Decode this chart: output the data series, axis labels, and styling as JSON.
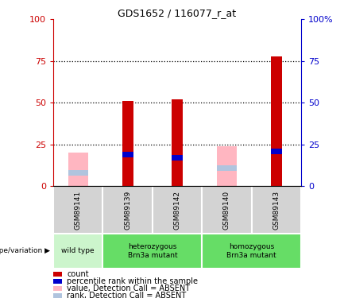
{
  "title": "GDS1652 / 116077_r_at",
  "samples": [
    "GSM89141",
    "GSM89139",
    "GSM89142",
    "GSM89140",
    "GSM89143"
  ],
  "ylim": [
    0,
    100
  ],
  "yticks": [
    0,
    25,
    50,
    75,
    100
  ],
  "ytick_labels_left": [
    "0",
    "25",
    "50",
    "75",
    "100"
  ],
  "ytick_labels_right": [
    "0",
    "25",
    "50",
    "75",
    "100%"
  ],
  "dotted_lines": [
    25,
    50,
    75
  ],
  "red_bars": [
    0,
    51,
    52,
    0,
    78
  ],
  "pink_bars": [
    20,
    0,
    0,
    24,
    0
  ],
  "blue_markers": [
    0,
    19,
    17,
    0,
    21
  ],
  "lightblue_markers": [
    8,
    0,
    0,
    11,
    0
  ],
  "red_color": "#cc0000",
  "pink_color": "#ffb6c1",
  "blue_color": "#0000cc",
  "lightblue_color": "#b0c4de",
  "gray_color": "#d3d3d3",
  "groups": [
    {
      "cols": [
        0
      ],
      "label": "wild type",
      "color": "#ccf5cc"
    },
    {
      "cols": [
        1,
        2
      ],
      "label": "heterozygous\nBrn3a mutant",
      "color": "#66dd66"
    },
    {
      "cols": [
        3,
        4
      ],
      "label": "homozygous\nBrn3a mutant",
      "color": "#66dd66"
    }
  ],
  "legend_items": [
    "count",
    "percentile rank within the sample",
    "value, Detection Call = ABSENT",
    "rank, Detection Call = ABSENT"
  ],
  "legend_colors": [
    "#cc0000",
    "#0000cc",
    "#ffb6c1",
    "#b0c4de"
  ],
  "genotype_label": "genotype/variation"
}
